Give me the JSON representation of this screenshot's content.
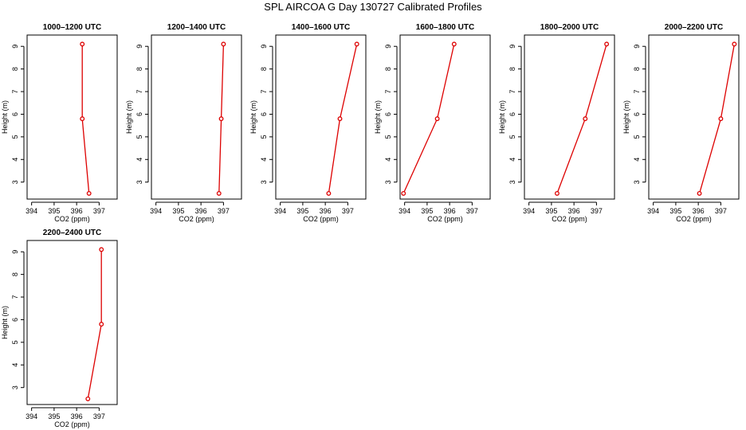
{
  "main_title": "SPL AIRCOA G  Day 130727  Calibrated Profiles",
  "colors": {
    "line": "#dd0000",
    "axis": "#000000"
  },
  "chart_data": [
    {
      "type": "line",
      "title": "1000–1200 UTC",
      "xlabel": "CO2 (ppm)",
      "ylabel": "Height (m)",
      "xlim": [
        393.8,
        397.8
      ],
      "ylim": [
        2.25,
        9.5
      ],
      "xticks": [
        "394",
        "395",
        "396",
        "397"
      ],
      "yticks": [
        "3",
        "4",
        "5",
        "6",
        "7",
        "8",
        "9"
      ],
      "series": [
        {
          "x": [
            396.55,
            396.25,
            396.25
          ],
          "y": [
            2.5,
            5.8,
            9.1
          ]
        }
      ]
    },
    {
      "type": "line",
      "title": "1200–1400 UTC",
      "xlabel": "CO2 (ppm)",
      "ylabel": "Height (m)",
      "xlim": [
        393.8,
        397.8
      ],
      "ylim": [
        2.25,
        9.5
      ],
      "xticks": [
        "394",
        "395",
        "396",
        "397"
      ],
      "yticks": [
        "3",
        "4",
        "5",
        "6",
        "7",
        "8",
        "9"
      ],
      "series": [
        {
          "x": [
            396.8,
            396.9,
            397.0
          ],
          "y": [
            2.5,
            5.8,
            9.1
          ]
        }
      ]
    },
    {
      "type": "line",
      "title": "1400–1600 UTC",
      "xlabel": "CO2 (ppm)",
      "ylabel": "Height (m)",
      "xlim": [
        393.8,
        397.8
      ],
      "ylim": [
        2.25,
        9.5
      ],
      "xticks": [
        "394",
        "395",
        "396",
        "397"
      ],
      "yticks": [
        "3",
        "4",
        "5",
        "6",
        "7",
        "8",
        "9"
      ],
      "series": [
        {
          "x": [
            396.15,
            396.65,
            397.4
          ],
          "y": [
            2.5,
            5.8,
            9.1
          ]
        }
      ]
    },
    {
      "type": "line",
      "title": "1600–1800 UTC",
      "xlabel": "CO2 (ppm)",
      "ylabel": "Height (m)",
      "xlim": [
        393.8,
        397.8
      ],
      "ylim": [
        2.25,
        9.5
      ],
      "xticks": [
        "394",
        "395",
        "396",
        "397"
      ],
      "yticks": [
        "3",
        "4",
        "5",
        "6",
        "7",
        "8",
        "9"
      ],
      "series": [
        {
          "x": [
            393.95,
            395.45,
            396.2
          ],
          "y": [
            2.5,
            5.8,
            9.1
          ]
        }
      ]
    },
    {
      "type": "line",
      "title": "1800–2000 UTC",
      "xlabel": "CO2 (ppm)",
      "ylabel": "Height (m)",
      "xlim": [
        393.8,
        397.8
      ],
      "ylim": [
        2.25,
        9.5
      ],
      "xticks": [
        "394",
        "395",
        "396",
        "397"
      ],
      "yticks": [
        "3",
        "4",
        "5",
        "6",
        "7",
        "8",
        "9"
      ],
      "series": [
        {
          "x": [
            395.25,
            396.5,
            397.45
          ],
          "y": [
            2.5,
            5.8,
            9.1
          ]
        }
      ]
    },
    {
      "type": "line",
      "title": "2000–2200 UTC",
      "xlabel": "CO2 (ppm)",
      "ylabel": "Height (m)",
      "xlim": [
        393.8,
        397.8
      ],
      "ylim": [
        2.25,
        9.5
      ],
      "xticks": [
        "394",
        "395",
        "396",
        "397"
      ],
      "yticks": [
        "3",
        "4",
        "5",
        "6",
        "7",
        "8",
        "9"
      ],
      "series": [
        {
          "x": [
            396.05,
            397.0,
            397.6
          ],
          "y": [
            2.5,
            5.8,
            9.1
          ]
        }
      ]
    },
    {
      "type": "line",
      "title": "2200–2400 UTC",
      "xlabel": "CO2 (ppm)",
      "ylabel": "Height (m)",
      "xlim": [
        393.8,
        397.8
      ],
      "ylim": [
        2.25,
        9.5
      ],
      "xticks": [
        "394",
        "395",
        "396",
        "397"
      ],
      "yticks": [
        "3",
        "4",
        "5",
        "6",
        "7",
        "8",
        "9"
      ],
      "series": [
        {
          "x": [
            396.5,
            397.1,
            397.1
          ],
          "y": [
            2.5,
            5.8,
            9.1
          ]
        }
      ]
    }
  ]
}
